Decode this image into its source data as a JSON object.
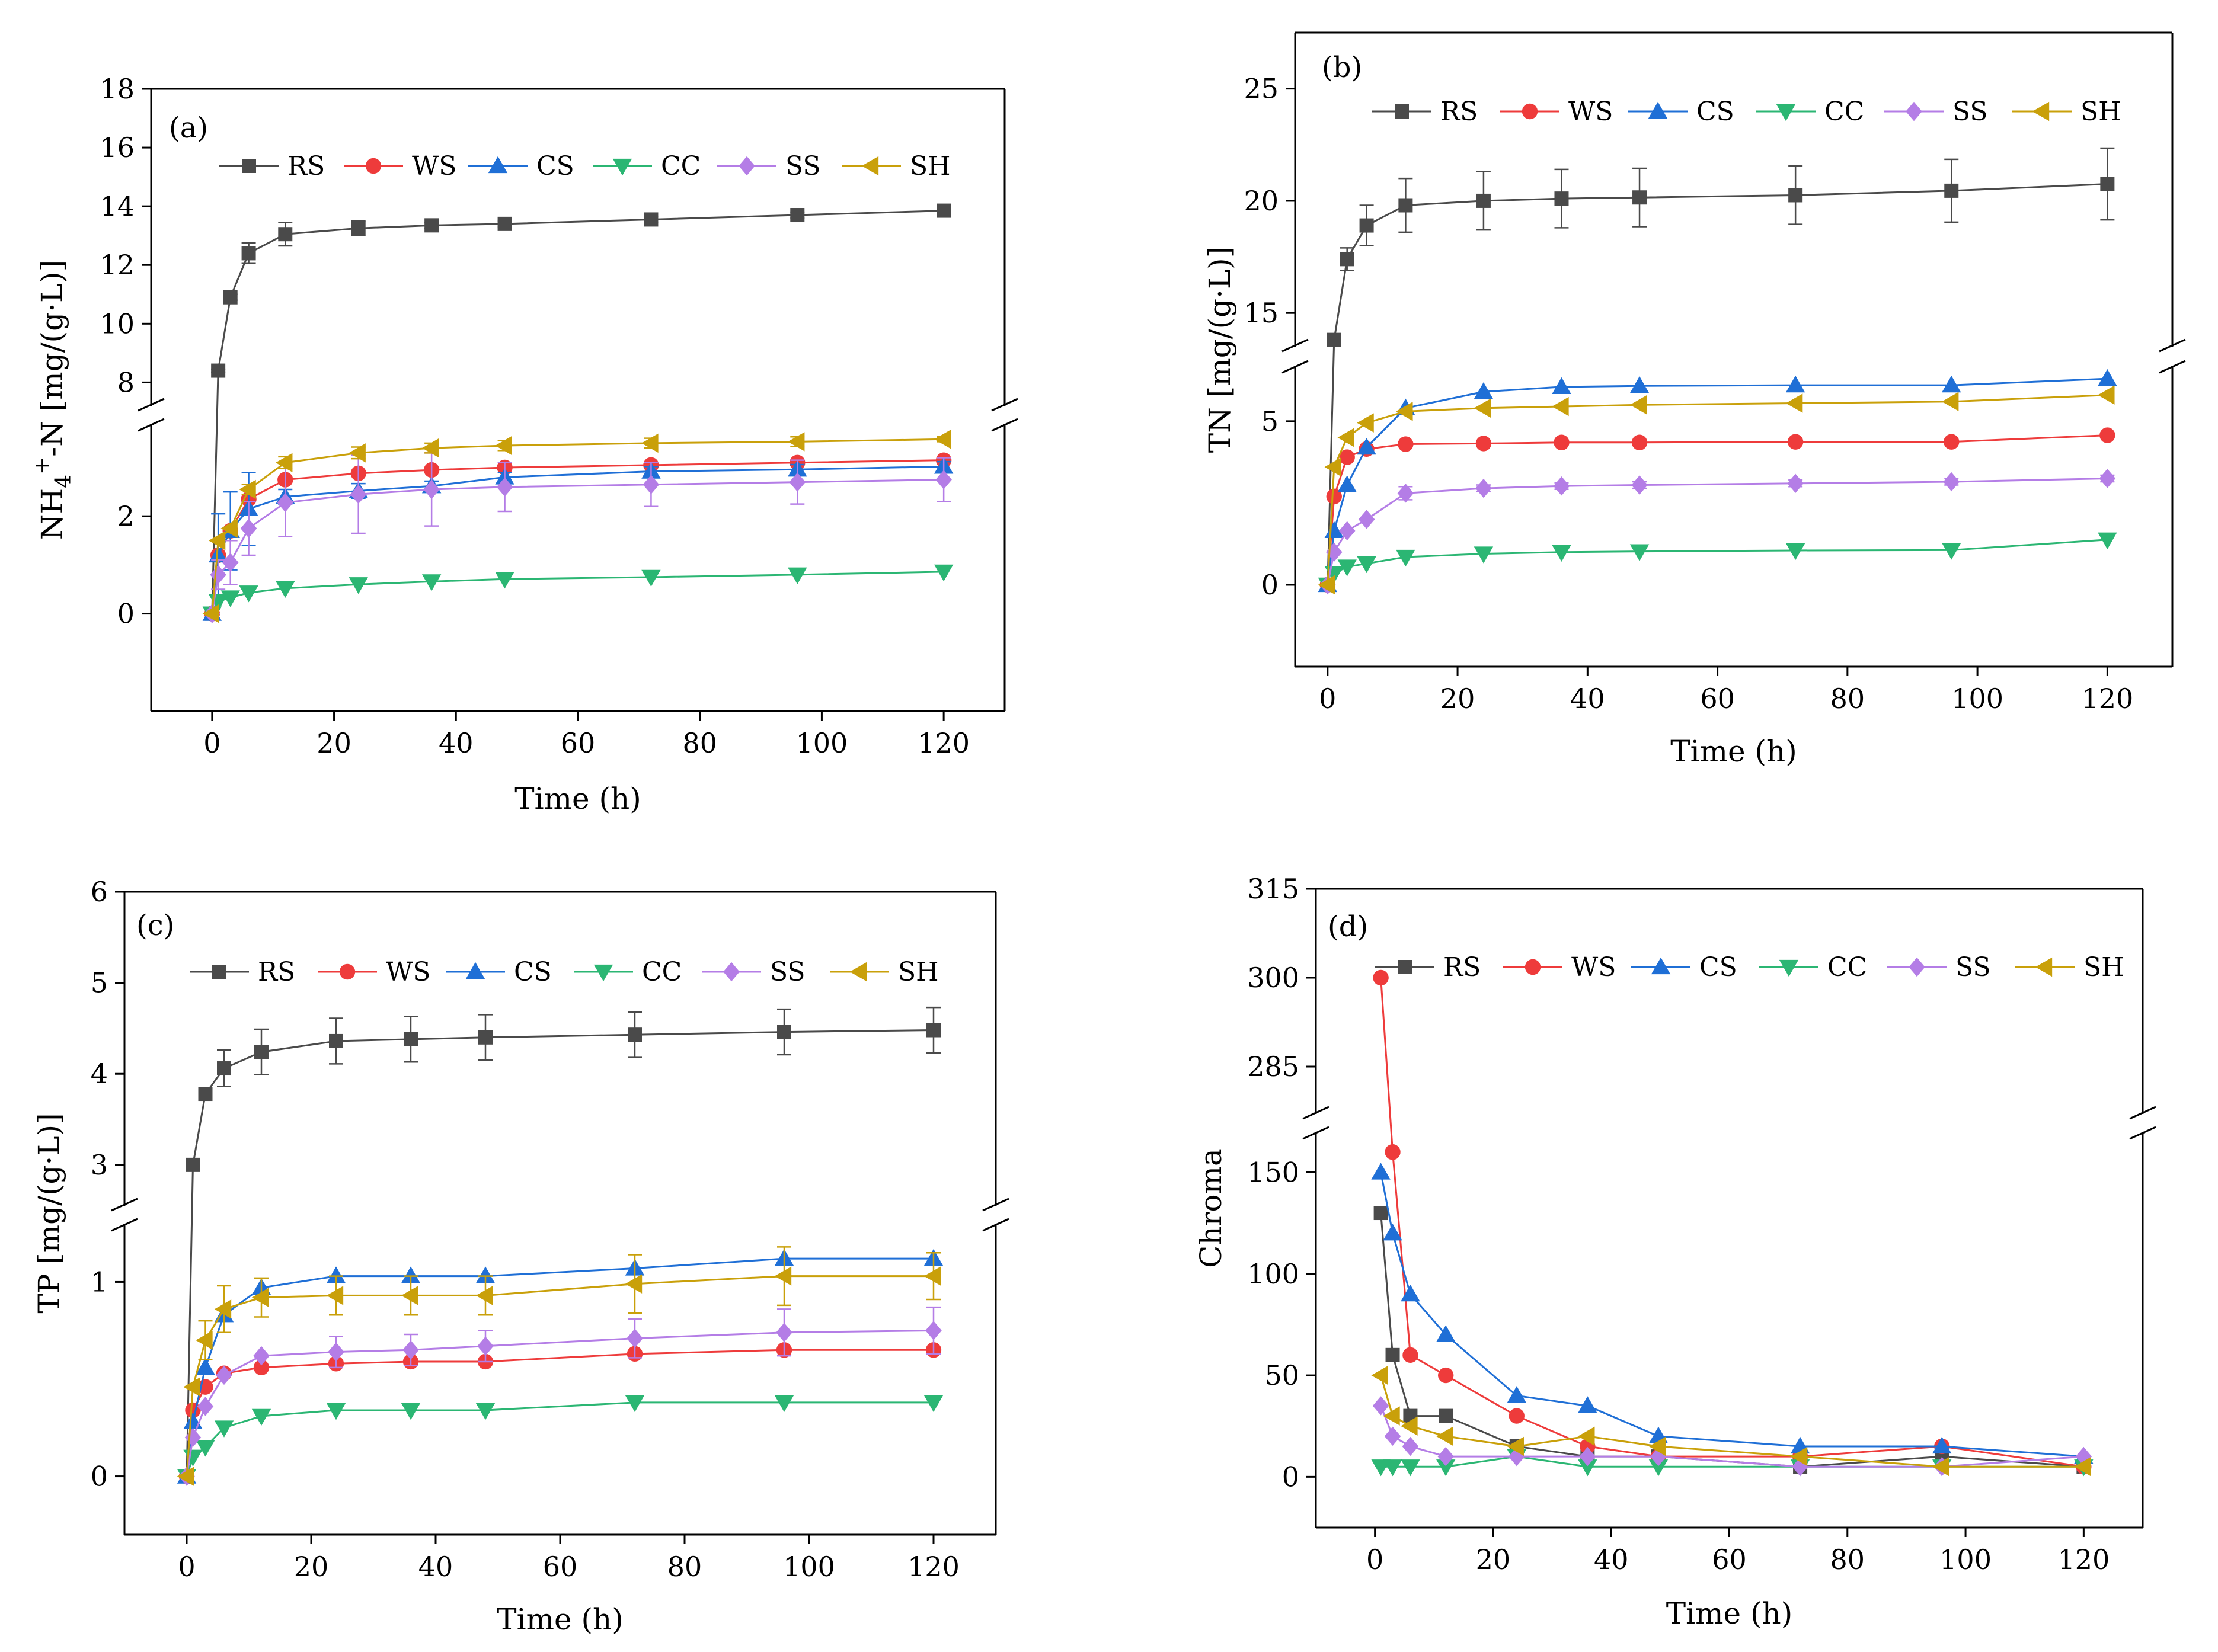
{
  "figure": {
    "colors": {
      "RS": "#4a4a4a",
      "WS": "#ee3b3b",
      "CS": "#1f6fd6",
      "CC": "#2bb673",
      "SS": "#b47de6",
      "SH": "#c9a00a"
    },
    "markers": {
      "RS": "square",
      "WS": "circle",
      "CS": "triangle-up",
      "CC": "triangle-down",
      "SS": "diamond",
      "SH": "triangle-left"
    }
  },
  "chart_data": [
    {
      "id": "a",
      "type": "line",
      "label": "(a)",
      "xlabel": "Time (h)",
      "ylabel": "NH4+-N [mg/(g·L)]",
      "ylabel_parts": {
        "base1": "NH",
        "sub": "4",
        "sup": "+",
        "base2": "-N [mg/(g·L)]"
      },
      "xlim": [
        -10,
        130
      ],
      "x_ticks": [
        0,
        20,
        40,
        60,
        80,
        100,
        120
      ],
      "segments": {
        "lower": {
          "range": [
            -2,
            3.9
          ],
          "ticks": [
            0,
            2
          ]
        },
        "upper": {
          "range": [
            7.2,
            18
          ],
          "ticks": [
            8,
            10,
            12,
            14,
            16,
            18
          ]
        }
      },
      "legend": [
        "RS",
        "WS",
        "CS",
        "CC",
        "SS",
        "SH"
      ],
      "x": [
        0,
        1,
        3,
        6,
        12,
        24,
        36,
        48,
        72,
        96,
        120
      ],
      "series": [
        {
          "name": "RS",
          "values": [
            0,
            8.4,
            10.9,
            12.4,
            13.05,
            13.25,
            13.35,
            13.4,
            13.55,
            13.7,
            13.85
          ],
          "errors": [
            0,
            0.05,
            0.1,
            0.35,
            0.4,
            0.25,
            0.1,
            0.1,
            0.1,
            0.1,
            0.1
          ]
        },
        {
          "name": "WS",
          "values": [
            0,
            1.2,
            1.7,
            2.35,
            2.75,
            2.88,
            2.95,
            3.0,
            3.05,
            3.1,
            3.15
          ],
          "errors": [
            0,
            0,
            0,
            0,
            0,
            0,
            0,
            0,
            0,
            0,
            0
          ]
        },
        {
          "name": "CS",
          "values": [
            0,
            1.2,
            1.7,
            2.15,
            2.4,
            2.52,
            2.62,
            2.8,
            2.92,
            2.96,
            3.02
          ],
          "errors": [
            0,
            0.85,
            0.8,
            0.75,
            0.15,
            0.15,
            0.1,
            0.1,
            0.1,
            0.1,
            0.1
          ]
        },
        {
          "name": "CC",
          "values": [
            0,
            0.25,
            0.33,
            0.43,
            0.52,
            0.6,
            0.66,
            0.71,
            0.75,
            0.8,
            0.86
          ],
          "errors": [
            0,
            0,
            0,
            0,
            0,
            0,
            0,
            0,
            0,
            0,
            0
          ]
        },
        {
          "name": "SS",
          "values": [
            0,
            0.8,
            1.05,
            1.75,
            2.28,
            2.45,
            2.55,
            2.6,
            2.65,
            2.7,
            2.75
          ],
          "errors": [
            0,
            0.3,
            0.45,
            0.55,
            0.7,
            0.8,
            0.75,
            0.5,
            0.45,
            0.45,
            0.45
          ]
        },
        {
          "name": "SH",
          "values": [
            0,
            1.5,
            1.75,
            2.55,
            3.1,
            3.3,
            3.4,
            3.45,
            3.5,
            3.53,
            3.58
          ],
          "errors": [
            0,
            0,
            0,
            0.1,
            0.12,
            0.12,
            0.1,
            0.1,
            0.1,
            0.1,
            0.05
          ]
        }
      ]
    },
    {
      "id": "b",
      "type": "line",
      "label": "(b)",
      "xlabel": "Time (h)",
      "ylabel": "TN [mg/(g·L)]",
      "xlim": [
        -5,
        130
      ],
      "x_ticks": [
        0,
        20,
        40,
        60,
        80,
        100,
        120
      ],
      "segments": {
        "lower": {
          "range": [
            -2.5,
            6.7
          ],
          "ticks": [
            0,
            5
          ]
        },
        "upper": {
          "range": [
            13.5,
            27.5
          ],
          "ticks": [
            15,
            20,
            25
          ]
        }
      },
      "legend": [
        "RS",
        "WS",
        "CS",
        "CC",
        "SS",
        "SH"
      ],
      "x": [
        0,
        1,
        3,
        6,
        12,
        24,
        36,
        48,
        72,
        96,
        120
      ],
      "series": [
        {
          "name": "RS",
          "values": [
            0,
            13.8,
            17.4,
            18.9,
            19.8,
            20.0,
            20.1,
            20.15,
            20.25,
            20.45,
            20.75
          ],
          "errors": [
            0,
            0.1,
            0.5,
            0.9,
            1.2,
            1.3,
            1.3,
            1.3,
            1.3,
            1.4,
            1.6
          ]
        },
        {
          "name": "WS",
          "values": [
            0,
            2.7,
            3.9,
            4.15,
            4.3,
            4.32,
            4.35,
            4.35,
            4.37,
            4.37,
            4.57
          ],
          "errors": [
            0,
            0,
            0,
            0,
            0,
            0,
            0,
            0,
            0,
            0,
            0
          ]
        },
        {
          "name": "CS",
          "values": [
            0,
            1.65,
            3.05,
            4.2,
            5.4,
            5.9,
            6.05,
            6.08,
            6.1,
            6.1,
            6.3
          ],
          "errors": [
            0,
            0,
            0,
            0,
            0,
            0,
            0,
            0,
            0,
            0,
            0
          ]
        },
        {
          "name": "CC",
          "values": [
            0,
            0.35,
            0.55,
            0.65,
            0.85,
            0.95,
            1.0,
            1.02,
            1.05,
            1.06,
            1.38
          ],
          "errors": [
            0,
            0,
            0,
            0,
            0,
            0,
            0,
            0,
            0,
            0,
            0
          ]
        },
        {
          "name": "SS",
          "values": [
            0,
            1.0,
            1.65,
            2.0,
            2.8,
            2.95,
            3.02,
            3.05,
            3.1,
            3.15,
            3.25
          ],
          "errors": [
            0,
            0,
            0,
            0,
            0.2,
            0.1,
            0.1,
            0.1,
            0.1,
            0.1,
            0.1
          ]
        },
        {
          "name": "SH",
          "values": [
            0,
            3.6,
            4.5,
            4.95,
            5.3,
            5.4,
            5.45,
            5.5,
            5.55,
            5.6,
            5.8
          ],
          "errors": [
            0,
            0,
            0,
            0,
            0,
            0,
            0,
            0,
            0,
            0,
            0
          ]
        }
      ]
    },
    {
      "id": "c",
      "type": "line",
      "label": "(c)",
      "xlabel": "Time (h)",
      "ylabel": "TP [mg/(g·L)]",
      "xlim": [
        -10,
        130
      ],
      "x_ticks": [
        0,
        20,
        40,
        60,
        80,
        100,
        120
      ],
      "segments": {
        "lower": {
          "range": [
            -0.3,
            1.3
          ],
          "ticks": [
            0,
            1
          ]
        },
        "upper": {
          "range": [
            2.55,
            6
          ],
          "ticks": [
            3,
            4,
            5,
            6
          ]
        }
      },
      "legend": [
        "RS",
        "WS",
        "CS",
        "CC",
        "SS",
        "SH"
      ],
      "x": [
        0,
        1,
        3,
        6,
        12,
        24,
        36,
        48,
        72,
        96,
        120
      ],
      "series": [
        {
          "name": "RS",
          "values": [
            0,
            3.0,
            3.78,
            4.06,
            4.24,
            4.36,
            4.38,
            4.4,
            4.43,
            4.46,
            4.48
          ],
          "errors": [
            0,
            0,
            0,
            0.2,
            0.25,
            0.25,
            0.25,
            0.25,
            0.25,
            0.25,
            0.25
          ]
        },
        {
          "name": "WS",
          "values": [
            0,
            0.34,
            0.46,
            0.53,
            0.56,
            0.58,
            0.59,
            0.59,
            0.63,
            0.65,
            0.65
          ],
          "errors": [
            0,
            0,
            0,
            0,
            0,
            0,
            0,
            0,
            0,
            0,
            0
          ]
        },
        {
          "name": "CS",
          "values": [
            0,
            0.28,
            0.56,
            0.83,
            0.97,
            1.03,
            1.03,
            1.03,
            1.07,
            1.12,
            1.12
          ],
          "errors": [
            0,
            0,
            0,
            0,
            0,
            0,
            0,
            0,
            0,
            0,
            0
          ]
        },
        {
          "name": "CC",
          "values": [
            0,
            0.1,
            0.15,
            0.25,
            0.31,
            0.34,
            0.34,
            0.34,
            0.38,
            0.38,
            0.38
          ],
          "errors": [
            0,
            0,
            0,
            0,
            0,
            0,
            0,
            0,
            0,
            0,
            0
          ]
        },
        {
          "name": "SS",
          "values": [
            0,
            0.2,
            0.36,
            0.52,
            0.62,
            0.64,
            0.65,
            0.67,
            0.71,
            0.74,
            0.75
          ],
          "errors": [
            0,
            0,
            0,
            0,
            0,
            0.08,
            0.08,
            0.08,
            0.1,
            0.12,
            0.12
          ]
        },
        {
          "name": "SH",
          "values": [
            0,
            0.46,
            0.7,
            0.86,
            0.92,
            0.93,
            0.93,
            0.93,
            0.99,
            1.03,
            1.03
          ],
          "errors": [
            0,
            0,
            0.1,
            0.12,
            0.1,
            0.1,
            0.1,
            0.1,
            0.15,
            0.15,
            0.12
          ]
        }
      ]
    },
    {
      "id": "d",
      "type": "line",
      "label": "(d)",
      "xlabel": "Time (h)",
      "ylabel": "Chroma",
      "xlim": [
        -10,
        130
      ],
      "x_ticks": [
        0,
        20,
        40,
        60,
        80,
        100,
        120
      ],
      "segments": {
        "lower": {
          "range": [
            -25,
            170
          ],
          "ticks": [
            0,
            50,
            100,
            150
          ]
        },
        "upper": {
          "range": [
            277,
            315
          ],
          "ticks": [
            285,
            300,
            315
          ]
        }
      },
      "legend": [
        "RS",
        "WS",
        "CS",
        "CC",
        "SS",
        "SH"
      ],
      "x": [
        1,
        3,
        6,
        12,
        24,
        36,
        48,
        72,
        96,
        120
      ],
      "series": [
        {
          "name": "RS",
          "values": [
            130,
            60,
            30,
            30,
            15,
            10,
            10,
            5,
            10,
            5
          ]
        },
        {
          "name": "WS",
          "values": [
            300,
            160,
            60,
            50,
            30,
            15,
            10,
            10,
            15,
            5
          ]
        },
        {
          "name": "CS",
          "values": [
            150,
            120,
            90,
            70,
            40,
            35,
            20,
            15,
            15,
            10
          ]
        },
        {
          "name": "CC",
          "values": [
            5,
            5,
            5,
            5,
            10,
            5,
            5,
            5,
            5,
            5
          ]
        },
        {
          "name": "SS",
          "values": [
            35,
            20,
            15,
            10,
            10,
            10,
            10,
            5,
            5,
            10
          ]
        },
        {
          "name": "SH",
          "values": [
            50,
            30,
            25,
            20,
            15,
            20,
            15,
            10,
            5,
            5
          ]
        }
      ]
    }
  ]
}
